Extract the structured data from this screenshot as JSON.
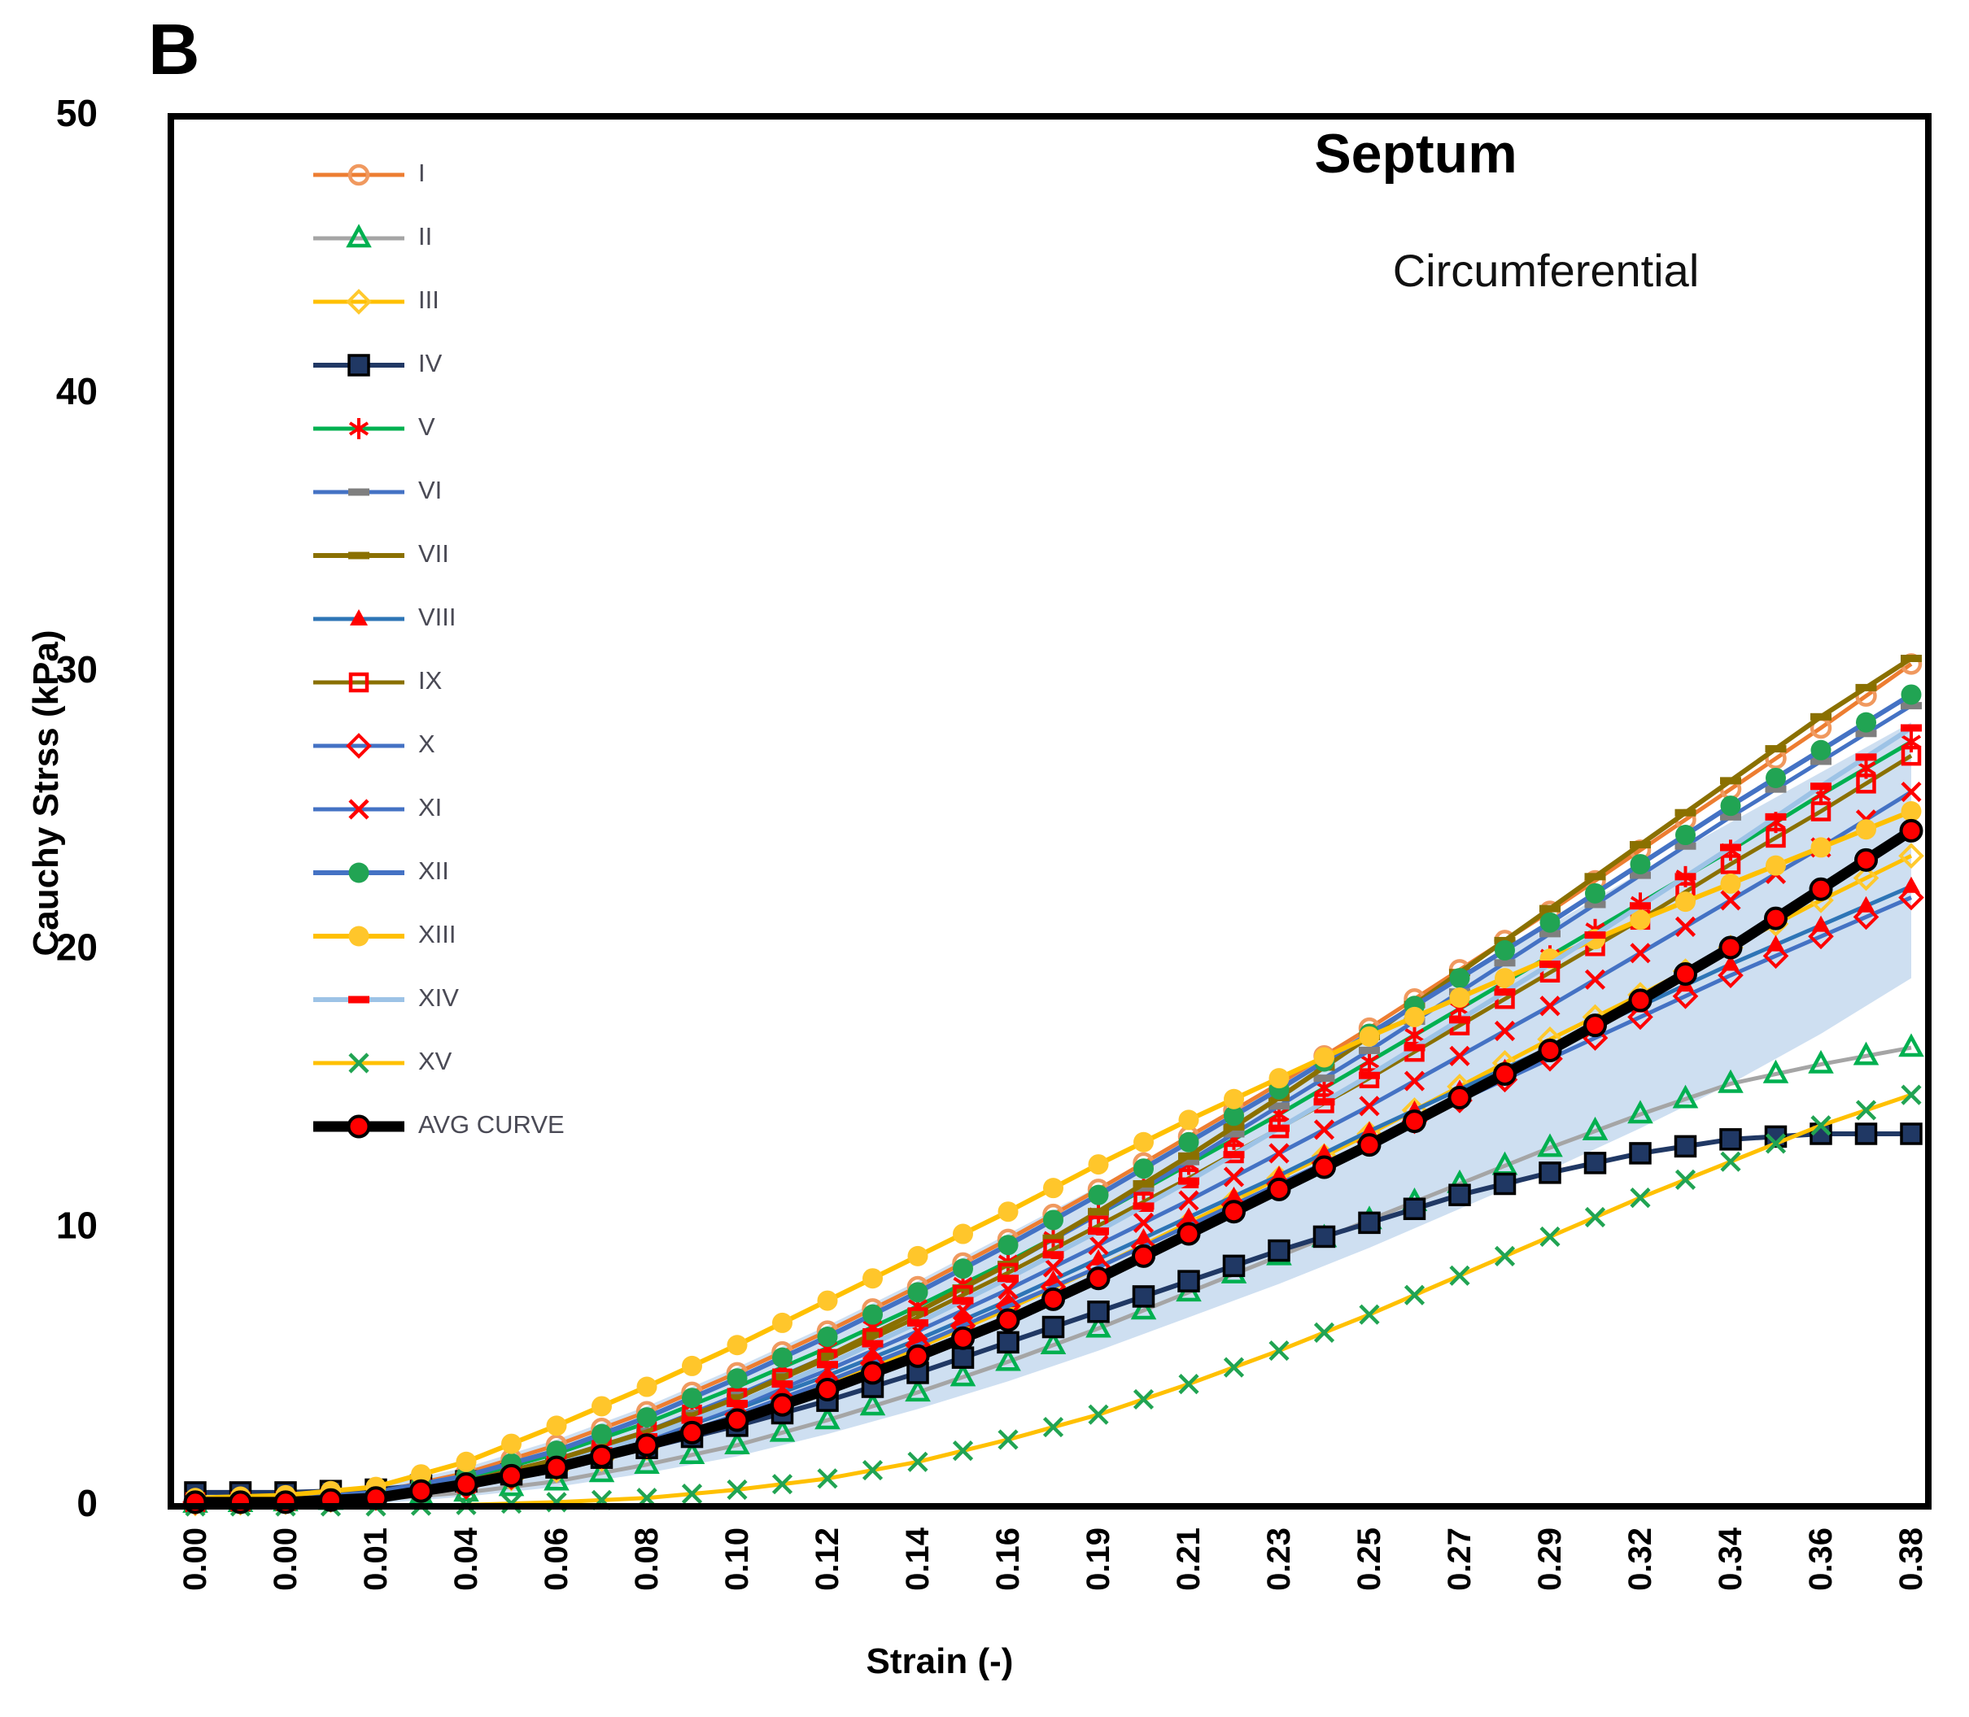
{
  "panel_label": "B",
  "chart_data": {
    "type": "line",
    "title": "Septum",
    "subtitle": "Circumferential",
    "xlabel": "Strain (-)",
    "ylabel": "Cauchy Strss (kPa)",
    "x_tick_labels": [
      "0.00",
      "0.00",
      "0.01",
      "0.04",
      "0.06",
      "0.08",
      "0.10",
      "0.12",
      "0.14",
      "0.16",
      "0.19",
      "0.21",
      "0.23",
      "0.25",
      "0.27",
      "0.29",
      "0.32",
      "0.34",
      "0.36",
      "0.38"
    ],
    "y_ticks": [
      0,
      10,
      20,
      30,
      40,
      50
    ],
    "ylim": [
      0,
      50
    ],
    "grid": false,
    "legend_position": "inside-top-left",
    "band": {
      "name": "std-band",
      "color": "#C9DCF0",
      "opacity": 0.9,
      "upper": [
        0.3,
        0.4,
        0.7,
        1.4,
        2.4,
        3.6,
        5.0,
        6.5,
        8.1,
        9.8,
        11.5,
        13.3,
        15.2,
        17.1,
        19.0,
        20.9,
        22.8,
        24.6,
        26.4,
        28.2
      ],
      "lower": [
        0,
        0,
        0.1,
        0.35,
        0.7,
        1.2,
        1.8,
        2.6,
        3.5,
        4.5,
        5.6,
        6.8,
        8.0,
        9.3,
        10.7,
        12.1,
        13.6,
        15.2,
        17.0,
        19.0
      ]
    },
    "series": [
      {
        "name": "I",
        "line_color": "#ED7D31",
        "line_width": 5,
        "marker": "open-circle",
        "marker_color": "#F0995F",
        "values": [
          0.2,
          0.25,
          0.5,
          1.2,
          2.2,
          3.4,
          4.8,
          6.3,
          7.9,
          9.6,
          11.4,
          13.3,
          15.2,
          17.2,
          19.3,
          21.4,
          23.6,
          25.8,
          28.0,
          30.3
        ]
      },
      {
        "name": "II",
        "line_color": "#A5A5A5",
        "line_width": 5,
        "marker": "open-triangle",
        "marker_color": "#00B050",
        "values": [
          0.1,
          0.15,
          0.25,
          0.5,
          0.9,
          1.5,
          2.2,
          3.1,
          4.1,
          5.2,
          6.4,
          7.7,
          9.0,
          10.3,
          11.6,
          12.9,
          14.1,
          15.2,
          15.9,
          16.5
        ]
      },
      {
        "name": "III",
        "line_color": "#FFC000",
        "line_width": 5,
        "marker": "open-diamond",
        "marker_color": "#FFC92E",
        "values": [
          0.1,
          0.15,
          0.3,
          0.7,
          1.3,
          2.1,
          3.2,
          4.4,
          5.7,
          7.1,
          8.6,
          10.2,
          11.8,
          13.4,
          15.1,
          16.8,
          18.4,
          20.1,
          21.8,
          23.4
        ]
      },
      {
        "name": "IV",
        "line_color": "#203864",
        "line_width": 6,
        "marker": "filled-square",
        "marker_color": "#203864",
        "marker_stroke": "#000000",
        "values": [
          0.5,
          0.5,
          0.6,
          0.9,
          1.4,
          2.1,
          2.9,
          3.8,
          4.8,
          5.9,
          7.0,
          8.1,
          9.2,
          10.2,
          11.2,
          12.0,
          12.7,
          13.2,
          13.4,
          13.4
        ]
      },
      {
        "name": "V",
        "line_color": "#00B050",
        "line_width": 5,
        "marker": "asterisk",
        "marker_color": "#FF0000",
        "values": [
          0.2,
          0.25,
          0.45,
          1.0,
          1.9,
          3.0,
          4.3,
          5.7,
          7.2,
          8.8,
          10.5,
          12.3,
          14.1,
          16.0,
          17.9,
          19.8,
          21.7,
          23.6,
          25.6,
          27.5
        ]
      },
      {
        "name": "VI",
        "line_color": "#4472C4",
        "line_width": 5,
        "marker": "dash",
        "marker_color": "#7F7F7F",
        "values": [
          0.15,
          0.2,
          0.4,
          0.9,
          1.7,
          2.7,
          4.0,
          5.4,
          7.0,
          8.7,
          10.5,
          12.4,
          14.4,
          16.4,
          18.5,
          20.6,
          22.7,
          24.8,
          26.8,
          28.8
        ]
      },
      {
        "name": "VII",
        "line_color": "#8A7000",
        "line_width": 6,
        "marker": "dash",
        "marker_color": "#8A7000",
        "values": [
          0.1,
          0.15,
          0.3,
          0.8,
          1.6,
          2.6,
          3.9,
          5.4,
          7.0,
          8.7,
          10.6,
          12.6,
          14.7,
          16.9,
          19.2,
          21.5,
          23.8,
          26.1,
          28.4,
          30.5
        ]
      },
      {
        "name": "VIII",
        "line_color": "#2E75B6",
        "line_width": 5,
        "marker": "filled-triangle",
        "marker_color": "#FF0000",
        "values": [
          0.15,
          0.2,
          0.35,
          0.8,
          1.5,
          2.4,
          3.5,
          4.7,
          6.0,
          7.4,
          8.9,
          10.4,
          11.9,
          13.5,
          15.0,
          16.5,
          18.0,
          19.5,
          20.9,
          22.3
        ]
      },
      {
        "name": "IX",
        "line_color": "#8A7000",
        "line_width": 5,
        "marker": "open-square",
        "marker_color": "#FF0000",
        "values": [
          0.15,
          0.2,
          0.4,
          0.9,
          1.7,
          2.7,
          3.9,
          5.3,
          6.8,
          8.4,
          10.1,
          11.8,
          13.6,
          15.4,
          17.3,
          19.2,
          21.1,
          23.1,
          25.0,
          27.0
        ]
      },
      {
        "name": "X",
        "line_color": "#4472C4",
        "line_width": 5,
        "marker": "open-diamond",
        "marker_color": "#FF0000",
        "values": [
          0.15,
          0.2,
          0.3,
          0.7,
          1.4,
          2.2,
          3.3,
          4.5,
          5.8,
          7.2,
          8.6,
          10.1,
          11.6,
          13.1,
          14.6,
          16.1,
          17.6,
          19.1,
          20.5,
          21.9
        ]
      },
      {
        "name": "XI",
        "line_color": "#4472C4",
        "line_width": 5,
        "marker": "x",
        "marker_color": "#FF0000",
        "values": [
          0.15,
          0.2,
          0.35,
          0.8,
          1.5,
          2.4,
          3.6,
          4.9,
          6.3,
          7.8,
          9.4,
          11.0,
          12.7,
          14.4,
          16.2,
          18.0,
          19.9,
          21.8,
          23.7,
          25.7
        ]
      },
      {
        "name": "XII",
        "line_color": "#4472C4",
        "line_width": 6,
        "marker": "filled-circle",
        "marker_color": "#21A453",
        "values": [
          0.2,
          0.25,
          0.5,
          1.1,
          2.0,
          3.2,
          4.6,
          6.1,
          7.7,
          9.4,
          11.2,
          13.1,
          15.0,
          17.0,
          19.0,
          21.0,
          23.1,
          25.2,
          27.2,
          29.2
        ]
      },
      {
        "name": "XIII",
        "line_color": "#FFC000",
        "line_width": 6,
        "marker": "filled-circle",
        "marker_color": "#FFC62B",
        "values": [
          0.3,
          0.4,
          0.7,
          1.6,
          2.9,
          4.3,
          5.8,
          7.4,
          9.0,
          10.6,
          12.3,
          13.9,
          15.4,
          16.9,
          18.3,
          19.7,
          21.1,
          22.4,
          23.7,
          25.0
        ]
      },
      {
        "name": "XIV",
        "line_color": "#9DC3E6",
        "line_width": 6,
        "marker": "dash",
        "marker_color": "#FF0000",
        "values": [
          0.15,
          0.2,
          0.35,
          0.8,
          1.5,
          2.5,
          3.7,
          5.1,
          6.6,
          8.2,
          9.9,
          11.7,
          13.6,
          15.5,
          17.5,
          19.5,
          21.6,
          23.7,
          25.9,
          28.0
        ]
      },
      {
        "name": "XV",
        "line_color": "#FFC000",
        "line_width": 5,
        "marker": "x",
        "marker_color": "#21A453",
        "values": [
          0,
          0,
          0,
          0.05,
          0.15,
          0.3,
          0.6,
          1.0,
          1.6,
          2.4,
          3.3,
          4.4,
          5.6,
          6.9,
          8.3,
          9.7,
          11.1,
          12.4,
          13.7,
          14.8
        ]
      },
      {
        "name": "AVG CURVE",
        "line_color": "#000000",
        "line_width": 13,
        "marker": "filled-circle",
        "marker_color": "#FF0000",
        "marker_stroke": "#000000",
        "values": [
          0.15,
          0.15,
          0.3,
          0.8,
          1.4,
          2.2,
          3.1,
          4.2,
          5.4,
          6.7,
          8.2,
          9.8,
          11.4,
          13.0,
          14.7,
          16.4,
          18.2,
          20.1,
          22.2,
          24.3
        ]
      }
    ]
  }
}
